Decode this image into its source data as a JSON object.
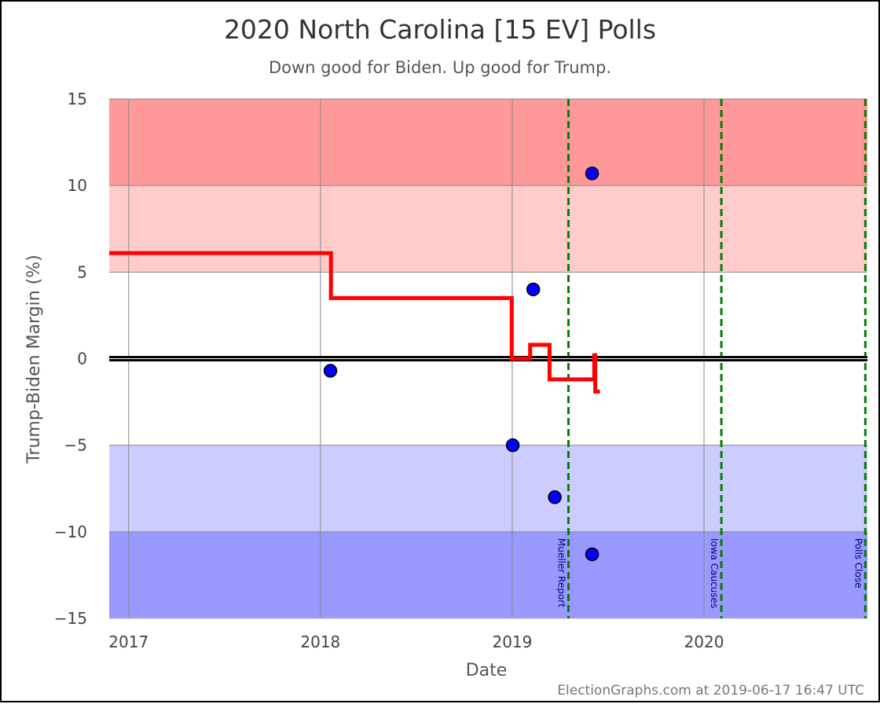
{
  "chart_data": {
    "type": "line",
    "title": "2020 North Carolina [15 EV] Polls",
    "subtitle": "Down good for Biden. Up good for Trump.",
    "xlabel": "Date",
    "ylabel": "Trump-Biden Margin (%)",
    "ylim": [
      -15,
      15
    ],
    "xlim": [
      "2016-11-25",
      "2020-11-07"
    ],
    "y_ticks": [
      "15",
      "10",
      "5",
      "0",
      "-5",
      "-10",
      "-15"
    ],
    "x_ticks": [
      {
        "date": "2017-01-01",
        "label": "2017"
      },
      {
        "date": "2018-01-01",
        "label": "2018"
      },
      {
        "date": "2019-01-01",
        "label": "2019"
      },
      {
        "date": "2020-01-01",
        "label": "2020"
      }
    ],
    "bands": [
      {
        "from": 10,
        "to": 15,
        "color": "#ff9999"
      },
      {
        "from": 5,
        "to": 10,
        "color": "#ffcccc"
      },
      {
        "from": -5,
        "to": 5,
        "color": "#ffffff"
      },
      {
        "from": -10,
        "to": -5,
        "color": "#ccccff"
      },
      {
        "from": -15,
        "to": -10,
        "color": "#9999ff"
      }
    ],
    "grid": true,
    "series": [
      {
        "kind": "step-line",
        "color": "#ff0000",
        "points": [
          {
            "x": "2016-11-25",
            "y": 6.1
          },
          {
            "x": "2018-01-21",
            "y": 6.1
          },
          {
            "x": "2018-01-21",
            "y": 3.5
          },
          {
            "x": "2018-12-31",
            "y": 3.5
          },
          {
            "x": "2018-12-31",
            "y": 0.0
          },
          {
            "x": "2019-02-04",
            "y": 0.0
          },
          {
            "x": "2019-02-04",
            "y": 0.8
          },
          {
            "x": "2019-03-13",
            "y": 0.8
          },
          {
            "x": "2019-03-13",
            "y": -1.2
          },
          {
            "x": "2019-06-06",
            "y": -1.2
          },
          {
            "x": "2019-06-06",
            "y": 0.2
          },
          {
            "x": "2019-06-08",
            "y": 0.2
          },
          {
            "x": "2019-06-08",
            "y": -1.9
          },
          {
            "x": "2019-06-17",
            "y": -1.9
          }
        ]
      },
      {
        "kind": "scatter",
        "color": "#0000ff",
        "points": [
          {
            "x": "2018-01-20",
            "y": -0.7
          },
          {
            "x": "2019-01-02",
            "y": -5.0
          },
          {
            "x": "2019-02-10",
            "y": 4.0
          },
          {
            "x": "2019-03-23",
            "y": -8.0
          },
          {
            "x": "2019-06-02",
            "y": 10.7
          },
          {
            "x": "2019-06-02",
            "y": -11.3
          }
        ]
      }
    ],
    "zero_line": {
      "y": 0,
      "color": "#000000"
    },
    "events": [
      {
        "date": "2019-04-18",
        "label": "Mueller Report",
        "color": "#008000"
      },
      {
        "date": "2020-02-03",
        "label": "Iowa Caucuses",
        "color": "#008000"
      },
      {
        "date": "2020-11-03",
        "label": "Polls Close",
        "color": "#008000"
      }
    ],
    "credit": "ElectionGraphs.com at 2019-06-17 16:47 UTC"
  }
}
